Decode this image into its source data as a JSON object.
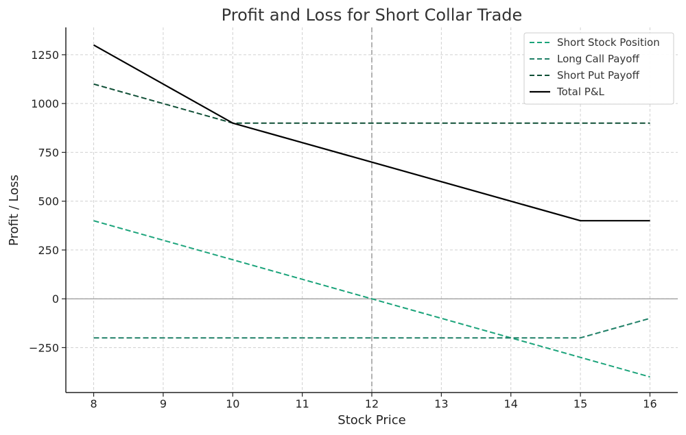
{
  "chart_data": {
    "type": "line",
    "title": "Profit and Loss for Short Collar Trade",
    "xlabel": "Stock Price",
    "ylabel": "Profit / Loss",
    "x": [
      8,
      9,
      10,
      11,
      12,
      13,
      14,
      15,
      16
    ],
    "xlim": [
      7.6,
      16.4
    ],
    "ylim": [
      -480,
      1390
    ],
    "xticks": [
      "8",
      "9",
      "10",
      "11",
      "12",
      "13",
      "14",
      "15",
      "16"
    ],
    "yticks": [
      {
        "value": -250,
        "label": "−250"
      },
      {
        "value": 0,
        "label": "0"
      },
      {
        "value": 250,
        "label": "250"
      },
      {
        "value": 500,
        "label": "500"
      },
      {
        "value": 750,
        "label": "750"
      },
      {
        "value": 1000,
        "label": "1000"
      },
      {
        "value": 1250,
        "label": "1250"
      }
    ],
    "grid": true,
    "legend_position": "top-right",
    "reference_lines": [
      {
        "orientation": "horizontal",
        "value": 0,
        "color": "#8c8c8c"
      },
      {
        "orientation": "vertical",
        "value": 12,
        "color": "#7f7f7f",
        "dashed": true
      }
    ],
    "series": [
      {
        "name": "Short Stock Position",
        "color": "#1aa37a",
        "dashed": true,
        "values": [
          400,
          300,
          200,
          100,
          0,
          -100,
          -200,
          -300,
          -400
        ]
      },
      {
        "name": "Long Call Payoff",
        "color": "#1e7f66",
        "dashed": true,
        "values": [
          -200,
          -200,
          -200,
          -200,
          -200,
          -200,
          -200,
          -200,
          -100
        ]
      },
      {
        "name": "Short Put Payoff",
        "color": "#0d4d34",
        "dashed": true,
        "values": [
          1100,
          1000,
          900,
          900,
          900,
          900,
          900,
          900,
          900
        ]
      },
      {
        "name": "Total P&L",
        "color": "#000000",
        "dashed": false,
        "values": [
          1300,
          1100,
          900,
          800,
          700,
          600,
          500,
          400,
          400
        ]
      }
    ]
  }
}
